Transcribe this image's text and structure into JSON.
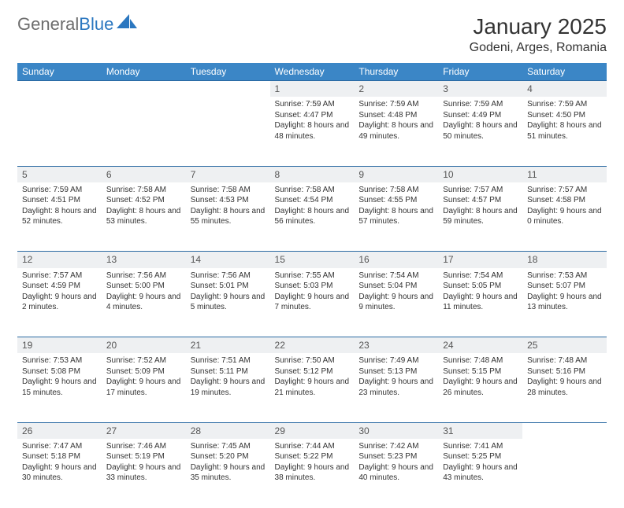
{
  "brand": {
    "part1": "General",
    "part2": "Blue"
  },
  "title": "January 2025",
  "location": "Godeni, Arges, Romania",
  "colors": {
    "header_bg": "#3b86c6",
    "header_text": "#ffffff",
    "daynum_bg": "#eef0f2",
    "rule": "#2b6aa3",
    "body_text": "#333333",
    "logo_gray": "#6d6d6d",
    "logo_blue": "#2b77c0"
  },
  "weekdays": [
    "Sunday",
    "Monday",
    "Tuesday",
    "Wednesday",
    "Thursday",
    "Friday",
    "Saturday"
  ],
  "weeks": [
    [
      null,
      null,
      null,
      {
        "n": "1",
        "sr": "7:59 AM",
        "ss": "4:47 PM",
        "dl": "8 hours and 48 minutes."
      },
      {
        "n": "2",
        "sr": "7:59 AM",
        "ss": "4:48 PM",
        "dl": "8 hours and 49 minutes."
      },
      {
        "n": "3",
        "sr": "7:59 AM",
        "ss": "4:49 PM",
        "dl": "8 hours and 50 minutes."
      },
      {
        "n": "4",
        "sr": "7:59 AM",
        "ss": "4:50 PM",
        "dl": "8 hours and 51 minutes."
      }
    ],
    [
      {
        "n": "5",
        "sr": "7:59 AM",
        "ss": "4:51 PM",
        "dl": "8 hours and 52 minutes."
      },
      {
        "n": "6",
        "sr": "7:58 AM",
        "ss": "4:52 PM",
        "dl": "8 hours and 53 minutes."
      },
      {
        "n": "7",
        "sr": "7:58 AM",
        "ss": "4:53 PM",
        "dl": "8 hours and 55 minutes."
      },
      {
        "n": "8",
        "sr": "7:58 AM",
        "ss": "4:54 PM",
        "dl": "8 hours and 56 minutes."
      },
      {
        "n": "9",
        "sr": "7:58 AM",
        "ss": "4:55 PM",
        "dl": "8 hours and 57 minutes."
      },
      {
        "n": "10",
        "sr": "7:57 AM",
        "ss": "4:57 PM",
        "dl": "8 hours and 59 minutes."
      },
      {
        "n": "11",
        "sr": "7:57 AM",
        "ss": "4:58 PM",
        "dl": "9 hours and 0 minutes."
      }
    ],
    [
      {
        "n": "12",
        "sr": "7:57 AM",
        "ss": "4:59 PM",
        "dl": "9 hours and 2 minutes."
      },
      {
        "n": "13",
        "sr": "7:56 AM",
        "ss": "5:00 PM",
        "dl": "9 hours and 4 minutes."
      },
      {
        "n": "14",
        "sr": "7:56 AM",
        "ss": "5:01 PM",
        "dl": "9 hours and 5 minutes."
      },
      {
        "n": "15",
        "sr": "7:55 AM",
        "ss": "5:03 PM",
        "dl": "9 hours and 7 minutes."
      },
      {
        "n": "16",
        "sr": "7:54 AM",
        "ss": "5:04 PM",
        "dl": "9 hours and 9 minutes."
      },
      {
        "n": "17",
        "sr": "7:54 AM",
        "ss": "5:05 PM",
        "dl": "9 hours and 11 minutes."
      },
      {
        "n": "18",
        "sr": "7:53 AM",
        "ss": "5:07 PM",
        "dl": "9 hours and 13 minutes."
      }
    ],
    [
      {
        "n": "19",
        "sr": "7:53 AM",
        "ss": "5:08 PM",
        "dl": "9 hours and 15 minutes."
      },
      {
        "n": "20",
        "sr": "7:52 AM",
        "ss": "5:09 PM",
        "dl": "9 hours and 17 minutes."
      },
      {
        "n": "21",
        "sr": "7:51 AM",
        "ss": "5:11 PM",
        "dl": "9 hours and 19 minutes."
      },
      {
        "n": "22",
        "sr": "7:50 AM",
        "ss": "5:12 PM",
        "dl": "9 hours and 21 minutes."
      },
      {
        "n": "23",
        "sr": "7:49 AM",
        "ss": "5:13 PM",
        "dl": "9 hours and 23 minutes."
      },
      {
        "n": "24",
        "sr": "7:48 AM",
        "ss": "5:15 PM",
        "dl": "9 hours and 26 minutes."
      },
      {
        "n": "25",
        "sr": "7:48 AM",
        "ss": "5:16 PM",
        "dl": "9 hours and 28 minutes."
      }
    ],
    [
      {
        "n": "26",
        "sr": "7:47 AM",
        "ss": "5:18 PM",
        "dl": "9 hours and 30 minutes."
      },
      {
        "n": "27",
        "sr": "7:46 AM",
        "ss": "5:19 PM",
        "dl": "9 hours and 33 minutes."
      },
      {
        "n": "28",
        "sr": "7:45 AM",
        "ss": "5:20 PM",
        "dl": "9 hours and 35 minutes."
      },
      {
        "n": "29",
        "sr": "7:44 AM",
        "ss": "5:22 PM",
        "dl": "9 hours and 38 minutes."
      },
      {
        "n": "30",
        "sr": "7:42 AM",
        "ss": "5:23 PM",
        "dl": "9 hours and 40 minutes."
      },
      {
        "n": "31",
        "sr": "7:41 AM",
        "ss": "5:25 PM",
        "dl": "9 hours and 43 minutes."
      },
      null
    ]
  ],
  "labels": {
    "sunrise": "Sunrise:",
    "sunset": "Sunset:",
    "daylight": "Daylight:"
  }
}
